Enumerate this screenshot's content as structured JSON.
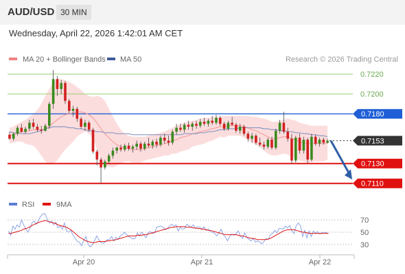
{
  "header": {
    "symbol": "AUD/USD",
    "timeframe": "30 MIN"
  },
  "datetime": "Wednesday, April 22, 2026 1:42:01 AM CET",
  "legend": [
    {
      "label": "MA 20 + Bollinger Bands",
      "color": "#f08080"
    },
    {
      "label": "MA 50",
      "color": "#3f5a9a"
    }
  ],
  "copyright": "Research © 2026 Trading Central",
  "chart_data": [
    {
      "type": "candlestick",
      "symbol": "AUD/USD",
      "x_ticks": [
        "Apr 20",
        "Apr 21",
        "Apr 22"
      ],
      "ylim": [
        0.7105,
        0.7227
      ],
      "levels": [
        {
          "value": 0.722,
          "label": "0.7220",
          "kind": "target",
          "color": "#9acd70"
        },
        {
          "value": 0.72,
          "label": "0.7200",
          "kind": "target",
          "color": "#9acd70"
        },
        {
          "value": 0.718,
          "label": "0.7180",
          "kind": "pivot",
          "color": "#1f5fd6"
        },
        {
          "value": 0.7153,
          "label": "0.7153",
          "kind": "last",
          "color": "#333333"
        },
        {
          "value": 0.713,
          "label": "0.7130",
          "kind": "support",
          "color": "#e01010"
        },
        {
          "value": 0.711,
          "label": "0.7110",
          "kind": "support",
          "color": "#e01010"
        }
      ],
      "last_price": 0.7153,
      "forecast": {
        "from": 0.7153,
        "to": 0.7114,
        "direction": "down"
      },
      "ohlc": [
        [
          0.7159,
          0.7162,
          0.7154,
          0.7155
        ],
        [
          0.7155,
          0.7161,
          0.7153,
          0.716
        ],
        [
          0.716,
          0.7168,
          0.7158,
          0.7166
        ],
        [
          0.7166,
          0.717,
          0.7161,
          0.7162
        ],
        [
          0.7162,
          0.7167,
          0.716,
          0.7165
        ],
        [
          0.7165,
          0.7174,
          0.7163,
          0.7171
        ],
        [
          0.7171,
          0.7175,
          0.7165,
          0.7167
        ],
        [
          0.7167,
          0.717,
          0.7162,
          0.7164
        ],
        [
          0.7164,
          0.7168,
          0.716,
          0.7163
        ],
        [
          0.7163,
          0.717,
          0.7162,
          0.7168
        ],
        [
          0.7168,
          0.7192,
          0.7165,
          0.719
        ],
        [
          0.719,
          0.7224,
          0.7185,
          0.7215
        ],
        [
          0.7215,
          0.7218,
          0.7198,
          0.7205
        ],
        [
          0.7205,
          0.7214,
          0.72,
          0.7211
        ],
        [
          0.7211,
          0.7213,
          0.719,
          0.7193
        ],
        [
          0.7193,
          0.7195,
          0.718,
          0.7183
        ],
        [
          0.7183,
          0.7188,
          0.7177,
          0.7185
        ],
        [
          0.7185,
          0.7187,
          0.7172,
          0.7175
        ],
        [
          0.7175,
          0.7177,
          0.7165,
          0.7167
        ],
        [
          0.7167,
          0.7174,
          0.7163,
          0.7171
        ],
        [
          0.7171,
          0.7173,
          0.7162,
          0.7164
        ],
        [
          0.7164,
          0.7166,
          0.714,
          0.7142
        ],
        [
          0.7142,
          0.7144,
          0.7128,
          0.7134
        ],
        [
          0.7134,
          0.7136,
          0.711,
          0.7126
        ],
        [
          0.7126,
          0.7134,
          0.7124,
          0.7132
        ],
        [
          0.7132,
          0.714,
          0.713,
          0.7138
        ],
        [
          0.7138,
          0.7146,
          0.7135,
          0.7143
        ],
        [
          0.7143,
          0.7147,
          0.714,
          0.7146
        ],
        [
          0.7146,
          0.7149,
          0.7142,
          0.7144
        ],
        [
          0.7144,
          0.715,
          0.7142,
          0.7148
        ],
        [
          0.7148,
          0.7151,
          0.7143,
          0.7145
        ],
        [
          0.7145,
          0.7149,
          0.7141,
          0.7147
        ],
        [
          0.7147,
          0.7153,
          0.7144,
          0.715
        ],
        [
          0.715,
          0.7152,
          0.7142,
          0.7145
        ],
        [
          0.7145,
          0.7152,
          0.7143,
          0.715
        ],
        [
          0.715,
          0.7156,
          0.7146,
          0.7148
        ],
        [
          0.7148,
          0.7154,
          0.7145,
          0.7152
        ],
        [
          0.7152,
          0.7155,
          0.7146,
          0.7149
        ],
        [
          0.7149,
          0.7158,
          0.7147,
          0.7156
        ],
        [
          0.7156,
          0.716,
          0.715,
          0.7153
        ],
        [
          0.7153,
          0.7158,
          0.7148,
          0.7151
        ],
        [
          0.7151,
          0.7164,
          0.7149,
          0.7162
        ],
        [
          0.7162,
          0.717,
          0.7159,
          0.7166
        ],
        [
          0.7166,
          0.717,
          0.7162,
          0.7164
        ],
        [
          0.7164,
          0.7171,
          0.7161,
          0.7169
        ],
        [
          0.7169,
          0.7173,
          0.7164,
          0.7167
        ],
        [
          0.7167,
          0.7172,
          0.7163,
          0.717
        ],
        [
          0.717,
          0.7173,
          0.7165,
          0.7168
        ],
        [
          0.7168,
          0.7175,
          0.7166,
          0.7172
        ],
        [
          0.7172,
          0.7176,
          0.7168,
          0.717
        ],
        [
          0.717,
          0.7175,
          0.7167,
          0.7173
        ],
        [
          0.7173,
          0.7178,
          0.7169,
          0.7171
        ],
        [
          0.7171,
          0.7179,
          0.7169,
          0.7176
        ],
        [
          0.7176,
          0.7178,
          0.7168,
          0.717
        ],
        [
          0.717,
          0.7172,
          0.7163,
          0.7165
        ],
        [
          0.7165,
          0.7173,
          0.7163,
          0.7171
        ],
        [
          0.7171,
          0.7177,
          0.7168,
          0.7169
        ],
        [
          0.7169,
          0.7171,
          0.7161,
          0.7163
        ],
        [
          0.7163,
          0.717,
          0.716,
          0.7167
        ],
        [
          0.7167,
          0.7169,
          0.7158,
          0.716
        ],
        [
          0.716,
          0.7162,
          0.7152,
          0.7155
        ],
        [
          0.7155,
          0.7161,
          0.7151,
          0.7158
        ],
        [
          0.7158,
          0.716,
          0.7149,
          0.7151
        ],
        [
          0.7151,
          0.7156,
          0.7147,
          0.7149
        ],
        [
          0.7149,
          0.7152,
          0.7144,
          0.7147
        ],
        [
          0.7147,
          0.7156,
          0.7145,
          0.7154
        ],
        [
          0.7154,
          0.7157,
          0.7144,
          0.7146
        ],
        [
          0.7146,
          0.7165,
          0.7144,
          0.7163
        ],
        [
          0.7163,
          0.7174,
          0.716,
          0.7171
        ],
        [
          0.7171,
          0.7182,
          0.716,
          0.7162
        ],
        [
          0.7162,
          0.7166,
          0.7152,
          0.7155
        ],
        [
          0.7155,
          0.716,
          0.713,
          0.7133
        ],
        [
          0.7133,
          0.7158,
          0.7131,
          0.7156
        ],
        [
          0.7156,
          0.716,
          0.714,
          0.7143
        ],
        [
          0.7143,
          0.7157,
          0.714,
          0.7154
        ],
        [
          0.7154,
          0.7156,
          0.713,
          0.7134
        ],
        [
          0.7134,
          0.716,
          0.7132,
          0.7157
        ],
        [
          0.7157,
          0.7159,
          0.7148,
          0.715
        ],
        [
          0.715,
          0.7156,
          0.7147,
          0.7154
        ],
        [
          0.7154,
          0.7156,
          0.7149,
          0.7151
        ],
        [
          0.7151,
          0.7155,
          0.715,
          0.7153
        ]
      ],
      "ma20": [
        0.7158,
        0.7159,
        0.7161,
        0.7162,
        0.7162,
        0.7163,
        0.7164,
        0.7164,
        0.7164,
        0.7165,
        0.7167,
        0.7171,
        0.7174,
        0.7177,
        0.7179,
        0.718,
        0.7181,
        0.7182,
        0.7182,
        0.7181,
        0.7179,
        0.7176,
        0.7171,
        0.7165,
        0.716,
        0.7156,
        0.7152,
        0.7149,
        0.7147,
        0.7146,
        0.7145,
        0.7144,
        0.7144,
        0.7144,
        0.7145,
        0.7146,
        0.7147,
        0.7148,
        0.7149,
        0.715,
        0.7151,
        0.7153,
        0.7154,
        0.7156,
        0.7157,
        0.7158,
        0.716,
        0.7161,
        0.7162,
        0.7163,
        0.7164,
        0.7165,
        0.7166,
        0.7167,
        0.7167,
        0.7168,
        0.7168,
        0.7168,
        0.7168,
        0.7167,
        0.7166,
        0.7164,
        0.7163,
        0.7161,
        0.7159,
        0.7157,
        0.7155,
        0.7155,
        0.7156,
        0.7157,
        0.7157,
        0.7155,
        0.7154,
        0.7152,
        0.7151,
        0.715,
        0.715,
        0.715,
        0.715,
        0.715,
        0.7151
      ],
      "bb_upper": [
        0.7166,
        0.7167,
        0.717,
        0.7172,
        0.7174,
        0.7177,
        0.718,
        0.7184,
        0.719,
        0.7198,
        0.7205,
        0.7212,
        0.7215,
        0.7215,
        0.7214,
        0.7212,
        0.721,
        0.7207,
        0.7204,
        0.72,
        0.7198,
        0.7197,
        0.7198,
        0.7197,
        0.7193,
        0.7185,
        0.7178,
        0.717,
        0.7164,
        0.716,
        0.7158,
        0.7157,
        0.7157,
        0.7157,
        0.7157,
        0.7158,
        0.7159,
        0.716,
        0.7161,
        0.7162,
        0.7164,
        0.7166,
        0.7168,
        0.717,
        0.7171,
        0.7172,
        0.7173,
        0.7174,
        0.7175,
        0.7176,
        0.7176,
        0.7177,
        0.7177,
        0.7177,
        0.7178,
        0.7178,
        0.7178,
        0.7178,
        0.7178,
        0.7178,
        0.7178,
        0.7177,
        0.7177,
        0.7176,
        0.7175,
        0.7174,
        0.7172,
        0.7172,
        0.7173,
        0.7174,
        0.7175,
        0.7174,
        0.7173,
        0.7171,
        0.717,
        0.7169,
        0.7168,
        0.7168,
        0.7168,
        0.7168,
        0.7168
      ],
      "bb_lower": [
        0.715,
        0.7151,
        0.7152,
        0.7152,
        0.715,
        0.7149,
        0.7148,
        0.7144,
        0.7138,
        0.7132,
        0.7129,
        0.713,
        0.7133,
        0.7139,
        0.7144,
        0.7148,
        0.7152,
        0.7157,
        0.716,
        0.7162,
        0.716,
        0.7155,
        0.7144,
        0.7133,
        0.7127,
        0.7127,
        0.7126,
        0.7128,
        0.713,
        0.7132,
        0.7132,
        0.7131,
        0.7131,
        0.7131,
        0.7133,
        0.7134,
        0.7135,
        0.7136,
        0.7137,
        0.7138,
        0.7138,
        0.714,
        0.714,
        0.7142,
        0.7143,
        0.7144,
        0.7147,
        0.7148,
        0.7149,
        0.715,
        0.7152,
        0.7153,
        0.7155,
        0.7157,
        0.7156,
        0.7158,
        0.7158,
        0.7158,
        0.7158,
        0.7156,
        0.7154,
        0.7151,
        0.7149,
        0.7146,
        0.7143,
        0.714,
        0.7138,
        0.7138,
        0.7139,
        0.714,
        0.7139,
        0.7136,
        0.7135,
        0.7133,
        0.7132,
        0.7131,
        0.7132,
        0.7132,
        0.7132,
        0.7132,
        0.7134
      ],
      "ma50": [
        0.7162,
        0.7161,
        0.7161,
        0.716,
        0.716,
        0.716,
        0.7161,
        0.7162,
        0.7163,
        0.7165,
        0.7166,
        0.7167,
        0.7167,
        0.7167,
        0.7167,
        0.7166,
        0.7166,
        0.7165,
        0.7165,
        0.7164,
        0.7163,
        0.7163,
        0.7162,
        0.7162,
        0.7161,
        0.7161,
        0.7161,
        0.716,
        0.716,
        0.716,
        0.716,
        0.7159,
        0.7159,
        0.7159,
        0.7159,
        0.7159,
        0.7159,
        0.7159,
        0.7159,
        0.7159,
        0.7159,
        0.7159,
        0.7159,
        0.7159,
        0.716,
        0.716,
        0.716,
        0.716,
        0.7161,
        0.7161,
        0.7162,
        0.7162,
        0.7163,
        0.7164,
        0.7164,
        0.7165,
        0.7165,
        0.7165,
        0.7166,
        0.7166,
        0.7166,
        0.7166,
        0.7166,
        0.7166,
        0.7165,
        0.7165,
        0.7164,
        0.7164,
        0.7163,
        0.7163,
        0.7162,
        0.7162,
        0.7161,
        0.7161,
        0.716,
        0.716,
        0.7159,
        0.7159,
        0.7158,
        0.7158,
        0.7157
      ]
    },
    {
      "type": "line",
      "legend": [
        {
          "label": "RSI",
          "color": "#5a7fd6"
        },
        {
          "label": "9MA",
          "color": "#e01010"
        }
      ],
      "y_ticks": [
        70,
        50,
        30
      ],
      "ylim": [
        20,
        80
      ],
      "series": [
        {
          "name": "RSI",
          "values": [
            52,
            45,
            60,
            55,
            62,
            58,
            70,
            62,
            55,
            50,
            57,
            66,
            68,
            63,
            70,
            76,
            80,
            80,
            71,
            65,
            68,
            62,
            66,
            57,
            60,
            55,
            65,
            52,
            50,
            53,
            45,
            40,
            35,
            34,
            28,
            37,
            43,
            31,
            26,
            30,
            36,
            44,
            38,
            33,
            32,
            34,
            38,
            38,
            43,
            36,
            42,
            38,
            44,
            46,
            50,
            46,
            43,
            41,
            39,
            40,
            49,
            44,
            50,
            46,
            41,
            49,
            51,
            48,
            49,
            58,
            59,
            60,
            58,
            54,
            56,
            60,
            63,
            60,
            62,
            52,
            58,
            55,
            56,
            63,
            60,
            58,
            62,
            56,
            59,
            58,
            55,
            59,
            53,
            55,
            51,
            50,
            48,
            44,
            49,
            55,
            46,
            42,
            36,
            43,
            47,
            45,
            48,
            52,
            44,
            40,
            49,
            42,
            38,
            36,
            40,
            34,
            36,
            34,
            31,
            35,
            40,
            38,
            46,
            48,
            53,
            49,
            56,
            56,
            55,
            60,
            57,
            61,
            52,
            48,
            61,
            65,
            60,
            43,
            53,
            41,
            52,
            43,
            52,
            48,
            51,
            47,
            49,
            50,
            49,
            48
          ]
        },
        {
          "name": "9MA",
          "values": [
            48,
            48,
            49,
            50,
            51,
            52,
            53,
            55,
            56,
            57,
            59,
            61,
            63,
            64,
            66,
            67,
            68,
            69,
            68,
            67,
            66,
            65,
            64,
            62,
            61,
            60,
            59,
            58,
            56,
            54,
            51,
            48,
            45,
            42,
            40,
            38,
            36,
            35,
            34,
            33,
            33,
            34,
            35,
            35,
            35,
            35,
            36,
            36,
            37,
            37,
            38,
            39,
            40,
            41,
            42,
            43,
            44,
            44,
            44,
            44,
            45,
            45,
            45,
            46,
            46,
            47,
            48,
            49,
            50,
            51,
            52,
            53,
            54,
            55,
            56,
            57,
            58,
            58,
            59,
            59,
            59,
            59,
            59,
            58,
            58,
            58,
            57,
            57,
            56,
            56,
            55,
            55,
            54,
            53,
            53,
            52,
            51,
            50,
            49,
            48,
            47,
            46,
            46,
            46,
            46,
            46,
            46,
            45,
            44,
            44,
            43,
            42,
            41,
            40,
            40,
            39,
            38,
            38,
            38,
            38,
            38,
            39,
            40,
            42,
            44,
            46,
            48,
            50,
            52,
            53,
            54,
            54,
            54,
            54,
            53,
            52,
            51,
            50,
            50,
            49,
            48,
            48,
            48,
            48,
            48,
            48,
            48,
            48,
            48,
            48
          ]
        }
      ]
    }
  ]
}
